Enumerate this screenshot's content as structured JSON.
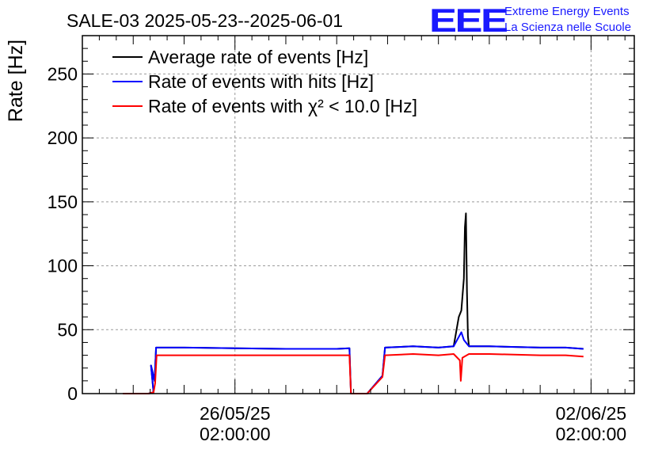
{
  "header": {
    "title": "SALE-03 2025-05-23--2025-06-01",
    "logo_text": "EEE",
    "logo_line1": "Extreme Energy Events",
    "logo_line2": "La Scienza nelle Scuole"
  },
  "colors": {
    "black_series": "#000000",
    "blue_series": "#0000ff",
    "red_series": "#ff0000",
    "logo": "#1a1aff",
    "grid": "#999999"
  },
  "chart_data": {
    "type": "line",
    "title": "SALE-03 2025-05-23--2025-06-01",
    "ylabel": "Rate [Hz]",
    "xlabel": "",
    "x_unit": "days",
    "x_range": [
      0,
      10.85
    ],
    "ylim": [
      0,
      280
    ],
    "yticks": [
      0,
      50,
      100,
      150,
      200,
      250
    ],
    "xticks": [
      {
        "value": 3.0,
        "label_date": "26/05/25",
        "label_time": "02:00:00"
      },
      {
        "value": 10.0,
        "label_date": "02/06/25",
        "label_time": "02:00:00"
      }
    ],
    "grid": true,
    "legend_position": "top-left",
    "series": [
      {
        "name": "Average rate of events [Hz]",
        "color": "#000000",
        "points": [
          [
            0.8,
            0
          ],
          [
            1.3,
            0
          ],
          [
            1.4,
            1
          ],
          [
            1.35,
            22
          ],
          [
            1.42,
            10
          ],
          [
            1.45,
            36
          ],
          [
            2.0,
            36
          ],
          [
            3.0,
            35.5
          ],
          [
            4.0,
            35
          ],
          [
            5.0,
            35
          ],
          [
            5.25,
            35.5
          ],
          [
            5.28,
            0
          ],
          [
            5.6,
            0
          ],
          [
            5.9,
            14
          ],
          [
            5.95,
            36
          ],
          [
            6.5,
            37
          ],
          [
            7.0,
            36
          ],
          [
            7.3,
            37
          ],
          [
            7.4,
            60
          ],
          [
            7.45,
            65
          ],
          [
            7.5,
            90
          ],
          [
            7.52,
            130
          ],
          [
            7.54,
            141
          ],
          [
            7.56,
            80
          ],
          [
            7.58,
            45
          ],
          [
            7.6,
            37
          ],
          [
            8.0,
            37
          ],
          [
            9.0,
            36
          ],
          [
            9.5,
            36
          ],
          [
            9.85,
            35
          ]
        ]
      },
      {
        "name": "Rate of events with hits [Hz]",
        "color": "#0000ff",
        "points": [
          [
            0.8,
            0
          ],
          [
            1.3,
            0
          ],
          [
            1.4,
            1
          ],
          [
            1.35,
            22
          ],
          [
            1.42,
            10
          ],
          [
            1.45,
            36
          ],
          [
            2.0,
            36
          ],
          [
            3.0,
            35.5
          ],
          [
            4.0,
            35
          ],
          [
            5.0,
            35
          ],
          [
            5.25,
            35.5
          ],
          [
            5.28,
            0
          ],
          [
            5.6,
            0
          ],
          [
            5.9,
            14
          ],
          [
            5.95,
            36
          ],
          [
            6.5,
            37
          ],
          [
            7.0,
            36
          ],
          [
            7.3,
            37
          ],
          [
            7.45,
            48
          ],
          [
            7.5,
            42
          ],
          [
            7.6,
            37
          ],
          [
            8.0,
            37
          ],
          [
            9.0,
            36
          ],
          [
            9.5,
            36
          ],
          [
            9.85,
            35
          ]
        ]
      },
      {
        "name": "Rate of events with χ² < 10.0 [Hz]",
        "color": "#ff0000",
        "points": [
          [
            0.8,
            0
          ],
          [
            1.3,
            0
          ],
          [
            1.4,
            1
          ],
          [
            1.43,
            8
          ],
          [
            1.46,
            30
          ],
          [
            2.0,
            30
          ],
          [
            3.0,
            30
          ],
          [
            4.0,
            30
          ],
          [
            5.0,
            30
          ],
          [
            5.25,
            30
          ],
          [
            5.28,
            0
          ],
          [
            5.6,
            0
          ],
          [
            5.9,
            13
          ],
          [
            5.95,
            30
          ],
          [
            6.5,
            31
          ],
          [
            7.0,
            30
          ],
          [
            7.3,
            31
          ],
          [
            7.42,
            26
          ],
          [
            7.44,
            10
          ],
          [
            7.47,
            28
          ],
          [
            7.6,
            31
          ],
          [
            8.0,
            31
          ],
          [
            9.0,
            30
          ],
          [
            9.5,
            30
          ],
          [
            9.85,
            29
          ]
        ]
      }
    ]
  }
}
